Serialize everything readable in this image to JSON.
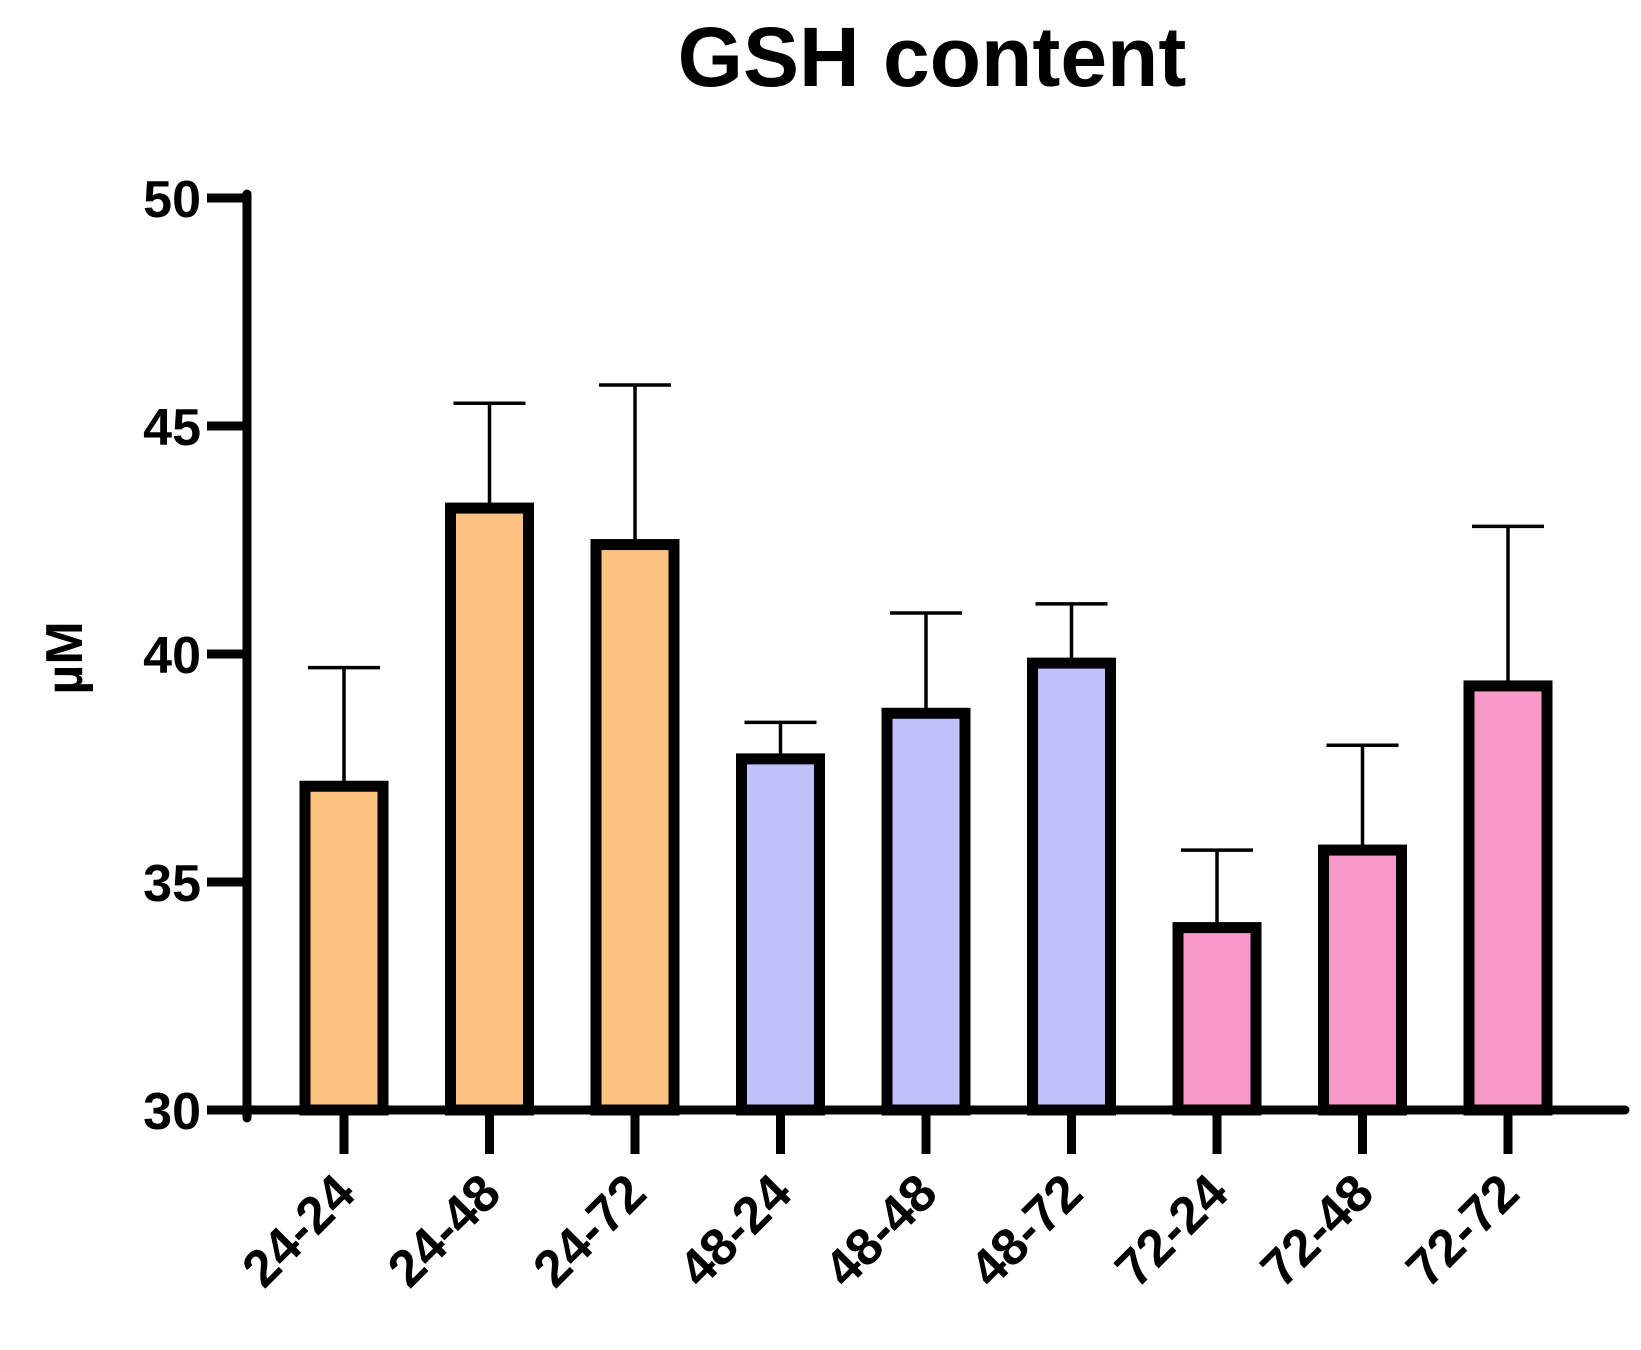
{
  "chart_data": {
    "type": "bar",
    "title": "GSH content",
    "xlabel": "",
    "ylabel": "µM",
    "ylim": [
      30,
      50
    ],
    "yticks": [
      30,
      35,
      40,
      45,
      50
    ],
    "grid": false,
    "legend": "none",
    "categories": [
      "24-24",
      "24-48",
      "24-72",
      "48-24",
      "48-48",
      "48-72",
      "72-24",
      "72-48",
      "72-72"
    ],
    "values": [
      37.1,
      43.2,
      42.4,
      37.7,
      38.7,
      39.8,
      34.0,
      35.7,
      39.3
    ],
    "errors": [
      2.6,
      2.3,
      3.5,
      0.8,
      2.2,
      1.3,
      1.7,
      2.3,
      3.5
    ],
    "colors": [
      "#FBC280",
      "#FBC280",
      "#FBC280",
      "#C0C0FB",
      "#C0C0FB",
      "#C0C0FB",
      "#F89AC7",
      "#F89AC7",
      "#F89AC7"
    ]
  }
}
